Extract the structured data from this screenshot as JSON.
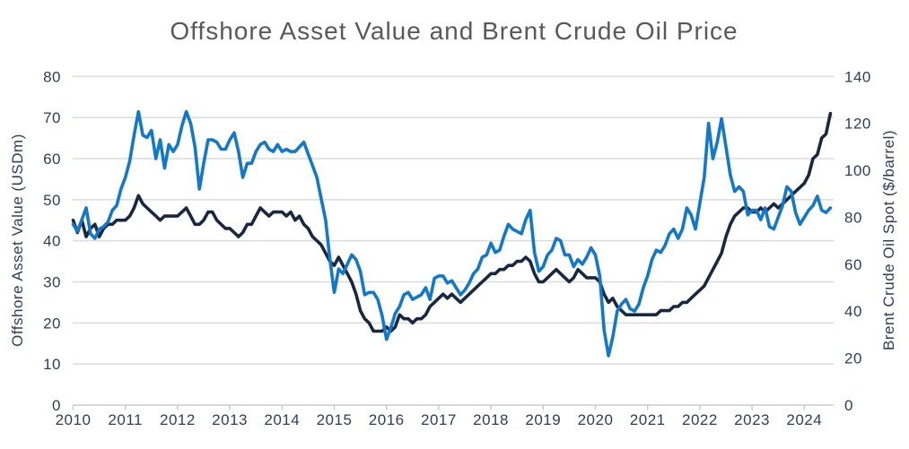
{
  "title": "Offshore Asset Value and Brent Crude Oil Price",
  "chart_data": {
    "type": "line",
    "title": "Offshore Asset Value and Brent Crude Oil Price",
    "x_unit": "monthly",
    "x_start_year": 2010,
    "x_end_label": "mid-2024",
    "x_tick_labels": [
      "2010",
      "2011",
      "2012",
      "2013",
      "2014",
      "2015",
      "2016",
      "2017",
      "2018",
      "2019",
      "2020",
      "2021",
      "2022",
      "2023",
      "2024"
    ],
    "left_axis": {
      "label": "Offshore Asset Value (USDm)",
      "min": 0,
      "max": 80,
      "tick_step": 10
    },
    "right_axis": {
      "label": "Brent Crude Oil Spot ($/barrel)",
      "min": 0,
      "max": 140,
      "tick_step": 20
    },
    "grid": "horizontal",
    "legend": "none",
    "series": [
      {
        "name": "Offshore Asset Value (USDm)",
        "axis": "left",
        "color": "#182840",
        "values": [
          45,
          42,
          45,
          41,
          43,
          44,
          41,
          43,
          44,
          44,
          45,
          45,
          45,
          46,
          48,
          51,
          49,
          48,
          47,
          46,
          45,
          46,
          46,
          46,
          46,
          47,
          48,
          46,
          44,
          44,
          45,
          47,
          47,
          45,
          44,
          43,
          43,
          42,
          41,
          42,
          44,
          44,
          46,
          48,
          47,
          46,
          47,
          47,
          47,
          46,
          47,
          45,
          46,
          44,
          43,
          41,
          40,
          39,
          37,
          35,
          34,
          36,
          34,
          32,
          30,
          27,
          23,
          21,
          20,
          18,
          18,
          18,
          19,
          18,
          19,
          22,
          21,
          21,
          20,
          21,
          21,
          22,
          24,
          25,
          26,
          27,
          26,
          27,
          26,
          25,
          26,
          27,
          28,
          29,
          30,
          31,
          32,
          32,
          33,
          33,
          34,
          34,
          35,
          35,
          36,
          35,
          32,
          30,
          30,
          31,
          32,
          33,
          32,
          31,
          30,
          31,
          33,
          32,
          31,
          31,
          31,
          30,
          27,
          25,
          26,
          24,
          23,
          22,
          22,
          22,
          22,
          22,
          22,
          22,
          22,
          23,
          23,
          23,
          24,
          24,
          25,
          25,
          26,
          27,
          28,
          29,
          31,
          33,
          35,
          37,
          41,
          44,
          46,
          47,
          48,
          48,
          47,
          47,
          48,
          47,
          48,
          49,
          48,
          49,
          50,
          51,
          52,
          53,
          54,
          56,
          60,
          61,
          65,
          66,
          71
        ]
      },
      {
        "name": "Brent Crude Oil Spot ($/barrel)",
        "axis": "right",
        "color": "#1278cc",
        "values": [
          77,
          74,
          79,
          84,
          73,
          71,
          75,
          76,
          78,
          83,
          85,
          92,
          97,
          104,
          115,
          125,
          115,
          114,
          117,
          105,
          113,
          101,
          111,
          108,
          111,
          119,
          125,
          120,
          110,
          92,
          103,
          113,
          113,
          112,
          109,
          109,
          113,
          116,
          108,
          97,
          103,
          103,
          108,
          111,
          112,
          109,
          108,
          111,
          108,
          109,
          108,
          108,
          110,
          112,
          107,
          102,
          97,
          88,
          79,
          62,
          48,
          58,
          56,
          60,
          64,
          62,
          57,
          47,
          48,
          48,
          45,
          38,
          28,
          33,
          39,
          42,
          47,
          48,
          45,
          46,
          47,
          50,
          45,
          54,
          55,
          55,
          52,
          53,
          50,
          47,
          49,
          52,
          56,
          58,
          63,
          64,
          69,
          65,
          66,
          72,
          77,
          75,
          74,
          73,
          79,
          83,
          65,
          57,
          59,
          64,
          66,
          71,
          70,
          64,
          64,
          59,
          62,
          60,
          63,
          67,
          64,
          55,
          32,
          21,
          29,
          40,
          43,
          45,
          41,
          40,
          43,
          50,
          55,
          62,
          66,
          65,
          68,
          73,
          75,
          71,
          75,
          84,
          81,
          75,
          86,
          97,
          120,
          105,
          112,
          122,
          110,
          98,
          91,
          93,
          91,
          81,
          83,
          83,
          79,
          84,
          76,
          75,
          80,
          85,
          93,
          91,
          82,
          77,
          80,
          83,
          85,
          89,
          83,
          82,
          84
        ]
      }
    ]
  },
  "colors": {
    "title_text": "#595959",
    "axis_text": "#2e3d5e",
    "gridline": "#dcdcdc",
    "axis_line": "#cccccc",
    "offshore_line": "#182840",
    "brent_line": "#1278cc",
    "background": "#ffffff"
  }
}
